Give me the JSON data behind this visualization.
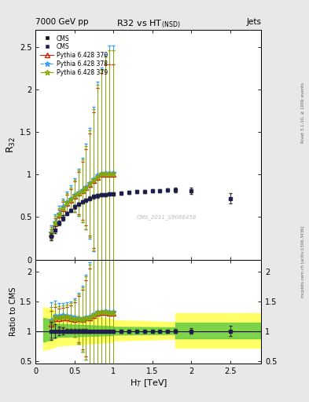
{
  "title": "R32 vs HT",
  "title_nsd": " (NSD)",
  "top_left_label": "7000 GeV pp",
  "top_right_label": "Jets",
  "y_label_main": "R$_{32}$",
  "y_label_ratio": "Ratio to CMS",
  "x_label": "H$_{T}$ [TeV]",
  "watermark": "CMS_2011_S9088458",
  "right_text1": "Rivet 3.1.10, ≥ 100k events",
  "right_text2": "mcplots.cern.ch [arXiv:1306.3436]",
  "cms_data_x": [
    0.2,
    0.25,
    0.3,
    0.35,
    0.4,
    0.45,
    0.5,
    0.55,
    0.6,
    0.65,
    0.7,
    0.75,
    0.8,
    0.85,
    0.9,
    0.95,
    1.0,
    1.1,
    1.2,
    1.3,
    1.4,
    1.5,
    1.6,
    1.7,
    1.8,
    2.0,
    2.5
  ],
  "cms_data_y": [
    0.27,
    0.35,
    0.43,
    0.49,
    0.54,
    0.58,
    0.62,
    0.65,
    0.68,
    0.7,
    0.72,
    0.74,
    0.75,
    0.76,
    0.76,
    0.77,
    0.77,
    0.78,
    0.79,
    0.8,
    0.8,
    0.81,
    0.81,
    0.82,
    0.82,
    0.81,
    0.72
  ],
  "cms_data_yerr": [
    0.04,
    0.04,
    0.03,
    0.03,
    0.02,
    0.02,
    0.02,
    0.02,
    0.02,
    0.02,
    0.02,
    0.02,
    0.02,
    0.02,
    0.02,
    0.02,
    0.02,
    0.02,
    0.02,
    0.02,
    0.02,
    0.02,
    0.02,
    0.02,
    0.03,
    0.04,
    0.06
  ],
  "pythia370_x": [
    0.2,
    0.25,
    0.3,
    0.35,
    0.4,
    0.45,
    0.5,
    0.55,
    0.6,
    0.65,
    0.7,
    0.75,
    0.8,
    0.85,
    0.9,
    0.95,
    1.0
  ],
  "pythia370_y": [
    0.3,
    0.42,
    0.52,
    0.6,
    0.66,
    0.7,
    0.74,
    0.78,
    0.81,
    0.85,
    0.88,
    0.93,
    0.97,
    1.0,
    1.0,
    1.0,
    1.0
  ],
  "pythia370_yerr": [
    0.06,
    0.07,
    0.07,
    0.08,
    0.1,
    0.13,
    0.18,
    0.25,
    0.34,
    0.45,
    0.6,
    0.8,
    1.05,
    1.2,
    1.3,
    1.3,
    1.3
  ],
  "pythia370_color": "#cc2200",
  "pythia378_x": [
    0.2,
    0.25,
    0.3,
    0.35,
    0.4,
    0.45,
    0.5,
    0.55,
    0.6,
    0.65,
    0.7,
    0.75,
    0.8,
    0.85,
    0.9,
    0.95,
    1.0
  ],
  "pythia378_y": [
    0.32,
    0.44,
    0.54,
    0.62,
    0.68,
    0.72,
    0.76,
    0.79,
    0.82,
    0.86,
    0.9,
    0.95,
    0.99,
    1.01,
    1.02,
    1.02,
    1.02
  ],
  "pythia378_yerr": [
    0.08,
    0.09,
    0.09,
    0.1,
    0.12,
    0.15,
    0.2,
    0.28,
    0.38,
    0.5,
    0.65,
    0.85,
    1.1,
    1.25,
    1.4,
    1.5,
    1.5
  ],
  "pythia378_color": "#3399ff",
  "pythia379_x": [
    0.2,
    0.25,
    0.3,
    0.35,
    0.4,
    0.45,
    0.5,
    0.55,
    0.6,
    0.65,
    0.7,
    0.75,
    0.8,
    0.85,
    0.9,
    0.95,
    1.0
  ],
  "pythia379_y": [
    0.31,
    0.43,
    0.53,
    0.61,
    0.67,
    0.71,
    0.75,
    0.78,
    0.81,
    0.85,
    0.89,
    0.94,
    0.98,
    1.01,
    1.01,
    1.01,
    1.01
  ],
  "pythia379_yerr": [
    0.07,
    0.08,
    0.08,
    0.09,
    0.11,
    0.14,
    0.19,
    0.27,
    0.37,
    0.49,
    0.63,
    0.83,
    1.08,
    1.22,
    1.38,
    1.45,
    1.45
  ],
  "pythia379_color": "#88aa00",
  "ylim_main": [
    0.0,
    2.7
  ],
  "ylim_ratio": [
    0.45,
    2.2
  ],
  "xlim": [
    0.1,
    2.9
  ],
  "bg_color": "#e8e8e8",
  "plot_bg": "#ffffff"
}
